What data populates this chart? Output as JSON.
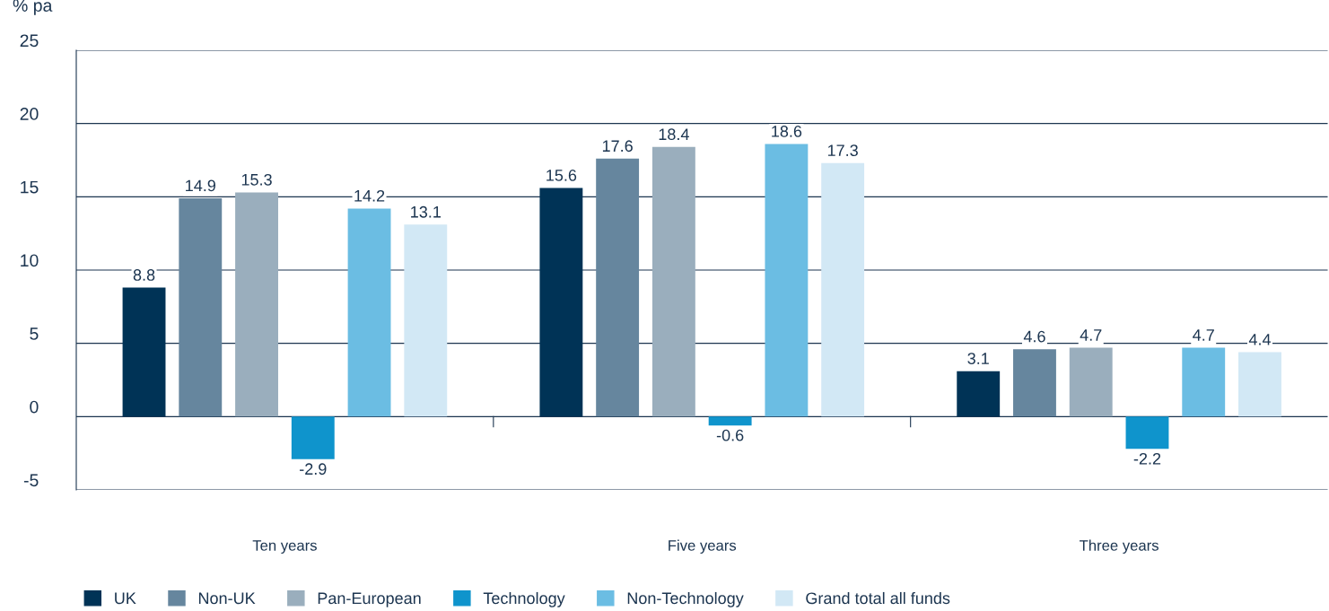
{
  "chart_data": {
    "type": "bar",
    "ylabel": "% pa",
    "categories": [
      "Ten years",
      "Five years",
      "Three years"
    ],
    "series": [
      {
        "name": "UK",
        "color": "#003356",
        "values": [
          8.8,
          15.6,
          3.1
        ]
      },
      {
        "name": "Non-UK",
        "color": "#66869e",
        "values": [
          14.9,
          17.6,
          4.6
        ]
      },
      {
        "name": "Pan-European",
        "color": "#9aaebd",
        "values": [
          15.3,
          18.4,
          4.7
        ]
      },
      {
        "name": "Technology",
        "color": "#0f94cc",
        "values": [
          -2.9,
          -0.6,
          -2.2
        ]
      },
      {
        "name": "Non-Technology",
        "color": "#6bbde3",
        "values": [
          14.2,
          18.6,
          4.7
        ]
      },
      {
        "name": "Grand total all funds",
        "color": "#d2e8f5",
        "values": [
          13.1,
          17.3,
          4.4
        ]
      }
    ],
    "ylim": [
      -5,
      25
    ],
    "yticks": [
      -5,
      0,
      5,
      10,
      15,
      20,
      25
    ],
    "grid": "y",
    "legend": "bottom",
    "data_labels": true
  }
}
